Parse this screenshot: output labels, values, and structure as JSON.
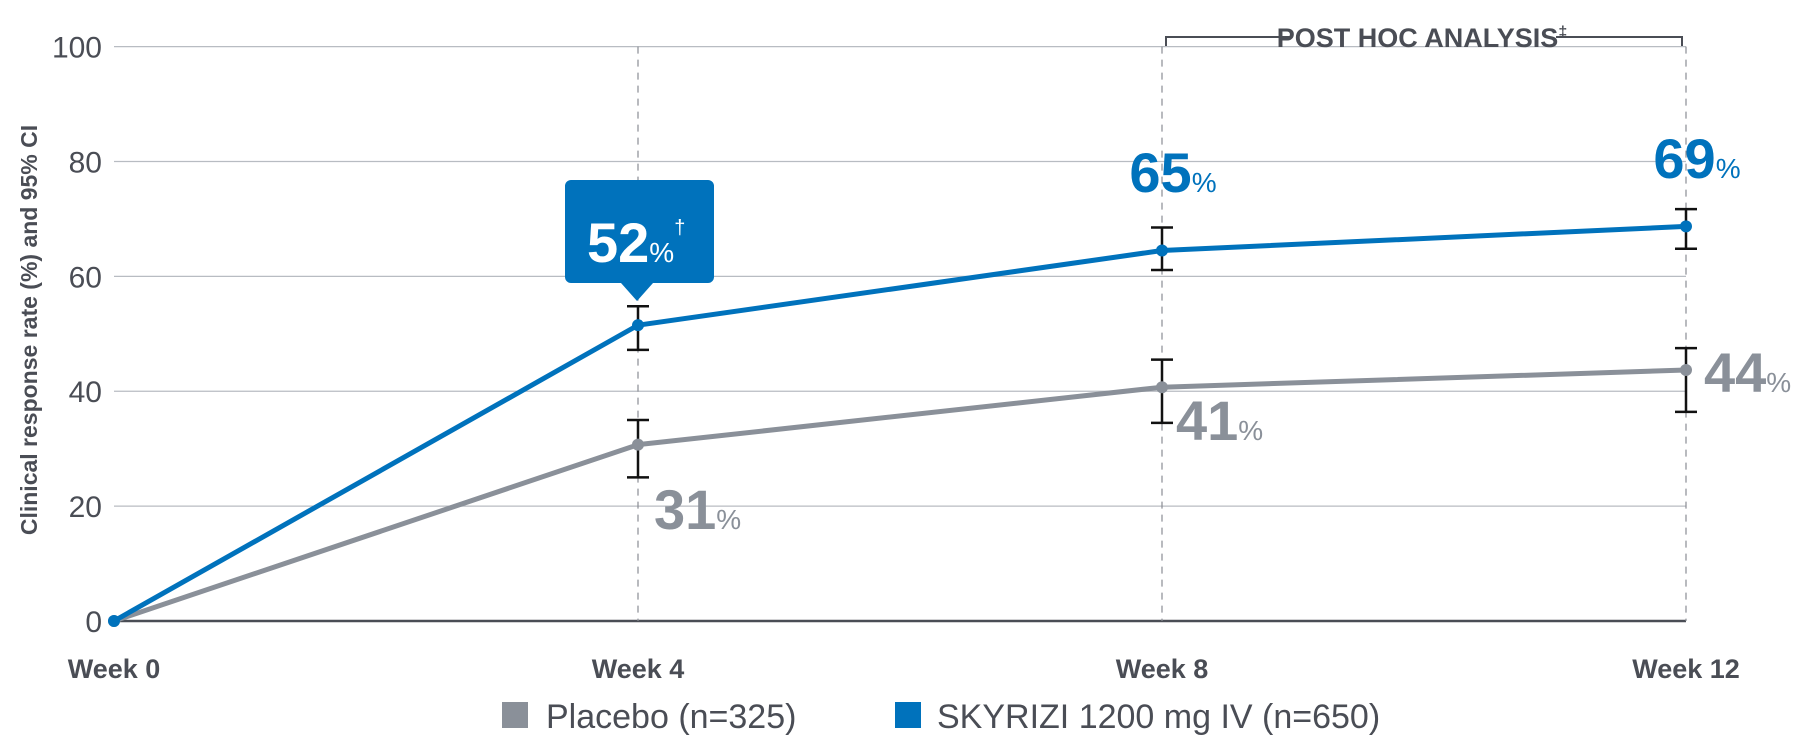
{
  "chart_data": {
    "type": "line",
    "ylabel": "Clinical response rate (%) and 95% CI",
    "ylim": [
      0,
      100
    ],
    "yticks": [
      "0",
      "20",
      "40",
      "60",
      "80",
      "100"
    ],
    "categories": [
      "Week 0",
      "Week 4",
      "Week 8",
      "Week 12"
    ],
    "grid": true,
    "legend_position": "bottom",
    "annotation": {
      "text": "POST HOC ANALYSIS",
      "mark": "‡",
      "span": [
        "Week 8",
        "Week 12"
      ]
    },
    "series": [
      {
        "name": "Placebo (n=325)",
        "color": "#8a9099",
        "values": [
          0,
          30.7,
          40.7,
          43.7
        ],
        "ci_low": [
          null,
          25.0,
          34.5,
          36.4
        ],
        "ci_high": [
          null,
          35.0,
          45.5,
          47.5
        ],
        "labels": [
          null,
          "31",
          "41",
          "44"
        ],
        "label_suffix": "%"
      },
      {
        "name": "SKYRIZI 1200 mg IV (n=650)",
        "color": "#0072bc",
        "values": [
          0,
          51.5,
          64.5,
          68.7
        ],
        "ci_low": [
          null,
          47.2,
          61.1,
          64.8
        ],
        "ci_high": [
          null,
          54.8,
          68.5,
          71.7
        ],
        "labels": [
          null,
          "52",
          "65",
          "69"
        ],
        "label_suffix": "%",
        "callout_mark": "†"
      }
    ]
  }
}
